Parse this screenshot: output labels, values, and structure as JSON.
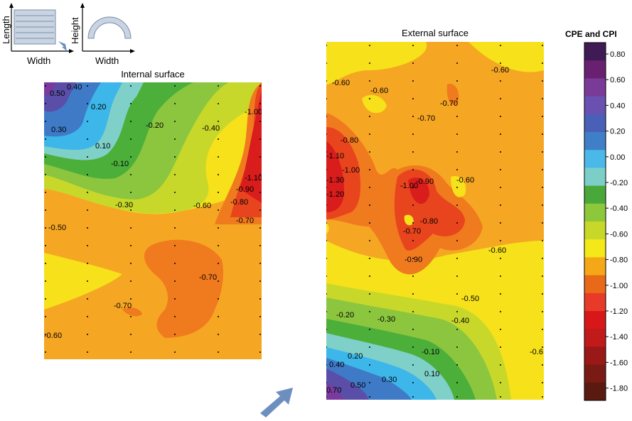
{
  "chart_data": [
    {
      "type": "heatmap",
      "title": "Internal surface",
      "contour_labels": [
        "0.50",
        "0.40",
        "0.20",
        "0.30",
        "0.10",
        "-0.10",
        "-0.20",
        "-0.30",
        "-0.40",
        "-1.00",
        "-1.10",
        "-0.90",
        "-0.80",
        "-0.60",
        "-0.70",
        "-0.50",
        "-0.70",
        "-0.70",
        "-0.60"
      ],
      "grid_points": true
    },
    {
      "type": "heatmap",
      "title": "External surface",
      "contour_labels": [
        "-0.60",
        "-0.60",
        "-0.60",
        "-0.70",
        "-0.70",
        "-0.80",
        "-1.10",
        "-1.00",
        "-1.30",
        "-1.20",
        "-1.00",
        "-0.90",
        "-0.60",
        "-0.80",
        "-0.70",
        "-0.90",
        "-0.60",
        "-0.50",
        "-0.20",
        "-0.30",
        "-0.40",
        "-0.10",
        "0.20",
        "0.40",
        "0.30",
        "0.10",
        "0.50",
        "0.70",
        "-0.6"
      ],
      "grid_points": true
    }
  ],
  "colorbar": {
    "title": "CPE and CPI",
    "ticks": [
      "0.80",
      "0.60",
      "0.40",
      "0.20",
      "0.00",
      "-0.20",
      "-0.40",
      "-0.60",
      "-0.80",
      "-1.00",
      "-1.20",
      "-1.40",
      "-1.60",
      "-1.80"
    ],
    "colors": [
      "#3f1a55",
      "#6a2070",
      "#7a3a98",
      "#6a50b0",
      "#4a5fb8",
      "#3f7fc8",
      "#4ab8e8",
      "#7ccfc8",
      "#4aa83a",
      "#8cc83a",
      "#c8d828",
      "#f4e818",
      "#f4a818",
      "#e86a18",
      "#e83a28",
      "#d81818",
      "#c01a1a",
      "#9a1818",
      "#7a1a14",
      "#5a1a10"
    ]
  },
  "legend_icons": {
    "left": {
      "ylabel": "Length",
      "xlabel": "Width"
    },
    "right": {
      "ylabel": "Height",
      "xlabel": "Width"
    }
  },
  "colors": {
    "arrow": "#6d8fbf"
  }
}
